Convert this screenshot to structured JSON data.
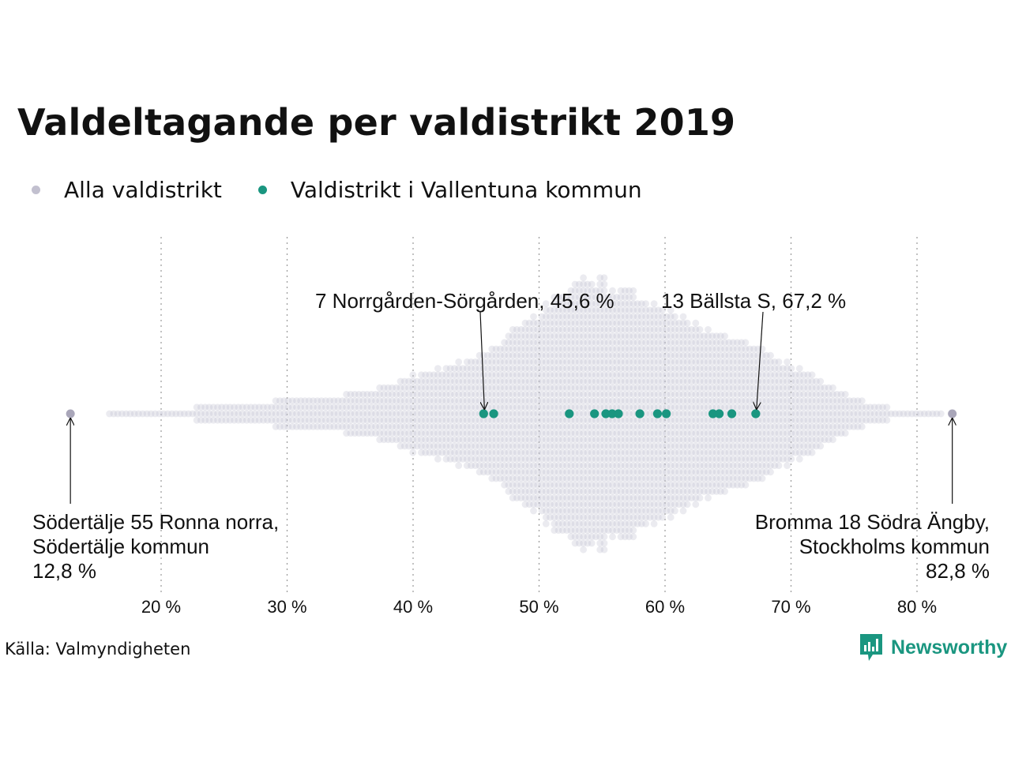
{
  "chart_data": {
    "type": "scatter",
    "subtype": "beeswarm",
    "title": "Valdeltagande per valdistrikt 2019",
    "xlim": [
      12,
      83
    ],
    "x_ticks": [
      20,
      30,
      40,
      50,
      60,
      70,
      80
    ],
    "x_tick_labels": [
      "20 %",
      "30 %",
      "40 %",
      "50 %",
      "60 %",
      "70 %",
      "80 %"
    ],
    "grid": "vertical dotted",
    "legend_position": "top-left",
    "series": [
      {
        "name": "Alla valdistrikt",
        "color": "#c2c0cf",
        "distribution": "dense beeswarm of all districts, peak density near 53–54 %, range 12,8 %–82,8 %",
        "extremes": [
          12.8,
          82.8
        ]
      },
      {
        "name": "Valdistrikt i Vallentuna kommun",
        "color": "#1a9680",
        "values": [
          45.6,
          46.4,
          52.4,
          54.4,
          55.3,
          55.8,
          56.3,
          58.0,
          59.4,
          60.1,
          63.8,
          64.3,
          65.3,
          67.2
        ]
      }
    ],
    "annotations": [
      {
        "id": "min",
        "x": 12.8,
        "lines": [
          "Södertälje 55 Ronna norra,",
          "Södertälje kommun",
          "12,8 %"
        ]
      },
      {
        "id": "max",
        "x": 82.8,
        "lines": [
          "Bromma 18 Södra Ängby,",
          "Stockholms kommun",
          "82,8 %"
        ]
      },
      {
        "id": "norrgarden",
        "x": 45.6,
        "lines": [
          "7 Norrgården-Sörgården, 45,6 %"
        ]
      },
      {
        "id": "ballsta",
        "x": 67.2,
        "lines": [
          "13 Bällsta S, 67,2 %"
        ]
      }
    ]
  },
  "source": "Källa: Valmyndigheten",
  "brand": {
    "name": "Newsworthy",
    "color": "#1a9680",
    "icon": "newsworthy-logo-icon"
  }
}
